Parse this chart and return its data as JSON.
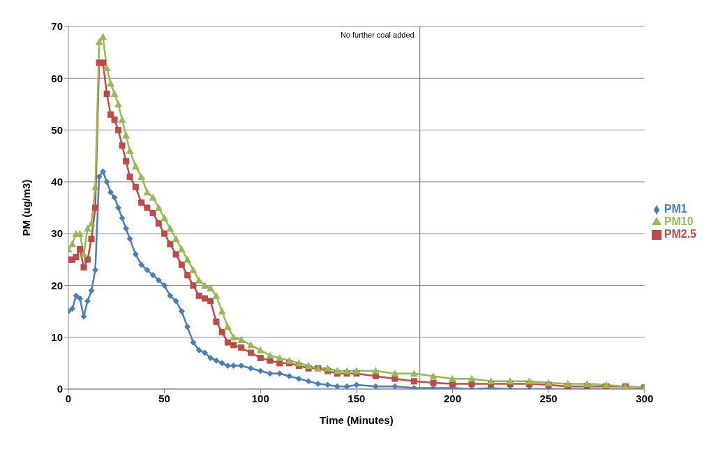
{
  "chart_data": {
    "type": "line",
    "xlabel": "Time (Minutes)",
    "ylabel": "PM (ug/m3)",
    "x": [
      0,
      2,
      4,
      6,
      8,
      10,
      12,
      14,
      16,
      18,
      20,
      22,
      24,
      26,
      28,
      30,
      32,
      35,
      38,
      41,
      44,
      47,
      50,
      53,
      56,
      59,
      62,
      65,
      68,
      71,
      74,
      77,
      80,
      83,
      86,
      90,
      95,
      100,
      105,
      110,
      115,
      120,
      125,
      130,
      135,
      140,
      145,
      150,
      160,
      170,
      180,
      190,
      200,
      210,
      220,
      230,
      240,
      250,
      260,
      270,
      280,
      290,
      300
    ],
    "series": [
      {
        "name": "PM1",
        "color": "#4a7ebb",
        "marker": "diamond",
        "values": [
          15,
          15.5,
          18,
          17.5,
          14,
          17,
          19,
          23,
          41,
          42,
          40,
          38,
          37,
          35,
          33,
          31,
          29,
          26,
          24,
          23,
          22,
          21,
          20,
          18,
          17,
          15,
          12,
          9,
          7.5,
          7,
          6,
          5.5,
          5,
          4.5,
          4.5,
          4.5,
          4,
          3.5,
          3,
          3,
          2.5,
          2,
          1.5,
          1,
          0.8,
          0.5,
          0.5,
          0.8,
          0.5,
          0.5,
          0.2,
          0.2,
          0.2,
          0,
          0.2,
          0,
          0,
          0,
          0,
          0,
          0,
          0,
          0
        ]
      },
      {
        "name": "PM2.5",
        "color": "#be4b48",
        "marker": "square",
        "values": [
          25,
          25,
          25.5,
          27,
          23.5,
          25,
          29,
          35,
          63,
          63,
          57,
          53,
          52,
          50,
          47,
          44,
          41,
          39,
          36,
          35,
          34,
          32,
          30,
          28,
          26,
          24,
          22,
          20,
          18,
          17.5,
          17,
          13,
          11,
          9,
          8.5,
          8,
          7,
          6,
          5.5,
          5,
          5,
          4.5,
          4,
          4,
          3.5,
          3,
          3,
          3,
          2.5,
          2,
          1.5,
          1.2,
          1,
          1,
          1,
          1,
          1,
          0.8,
          0.5,
          0.5,
          0.5,
          0.5,
          0.3
        ]
      },
      {
        "name": "PM10",
        "color": "#98b954",
        "marker": "triangle",
        "values": [
          27,
          28,
          30,
          30,
          26,
          31,
          32,
          39,
          67,
          68,
          62,
          59,
          57,
          55,
          52,
          49,
          46,
          43,
          41,
          38,
          37,
          35,
          33,
          31,
          29,
          27,
          25,
          23,
          21,
          20,
          19.5,
          18,
          15,
          12,
          10,
          9.5,
          8.5,
          7.5,
          6.5,
          6,
          5.5,
          5,
          4.5,
          4,
          4,
          3.5,
          3.5,
          3.5,
          3.5,
          3,
          3,
          2.5,
          2,
          2,
          1.5,
          1.5,
          1.5,
          1.2,
          1,
          1,
          0.8,
          0.5,
          0.3
        ]
      }
    ],
    "xlim": [
      0,
      300
    ],
    "xticks": [
      0,
      50,
      100,
      150,
      200,
      250,
      300
    ],
    "ylim": [
      0,
      70
    ],
    "yticks": [
      0,
      10,
      20,
      30,
      40,
      50,
      60,
      70
    ],
    "grid": "y",
    "legend": "right",
    "line_style": "solid",
    "ref_lines": [
      {
        "axis": "x",
        "value": 183,
        "label": "No further coal added",
        "color": "#4a6f8f"
      }
    ]
  }
}
